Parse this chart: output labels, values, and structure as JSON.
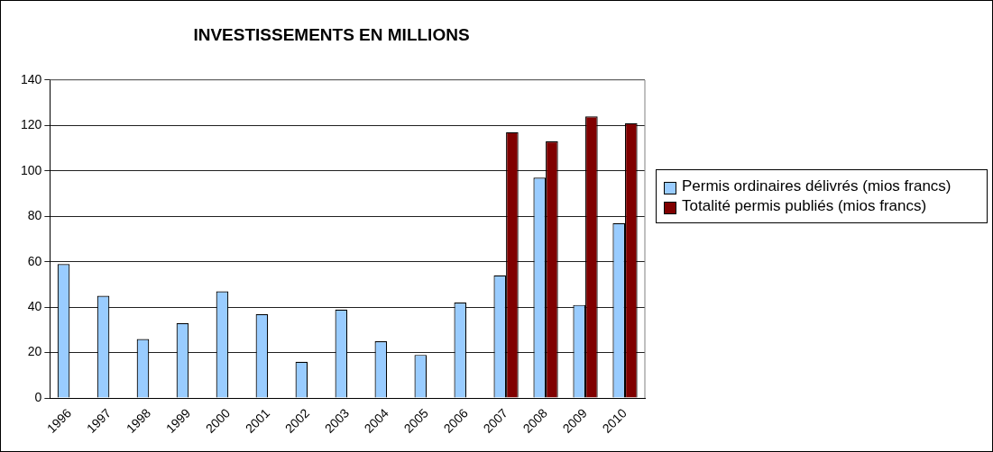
{
  "chart_data": {
    "type": "bar",
    "title": "INVESTISSEMENTS EN MILLIONS",
    "categories": [
      "1996",
      "1997",
      "1998",
      "1999",
      "2000",
      "2001",
      "2002",
      "2003",
      "2004",
      "2005",
      "2006",
      "2007",
      "2008",
      "2009",
      "2010"
    ],
    "series": [
      {
        "name": "Permis ordinaires délivrés (mios francs)",
        "color": "#99ccff",
        "values": [
          59,
          45,
          26,
          33,
          47,
          37,
          16,
          39,
          25,
          19,
          42,
          54,
          97,
          41,
          77
        ]
      },
      {
        "name": "Totalité permis publiés (mios francs)",
        "color": "#800000",
        "values": [
          null,
          null,
          null,
          null,
          null,
          null,
          null,
          null,
          null,
          null,
          null,
          117,
          113,
          124,
          121
        ]
      }
    ],
    "ylim": [
      0,
      140
    ],
    "yticks": [
      0,
      20,
      40,
      60,
      80,
      100,
      120,
      140
    ],
    "grid": "y",
    "legend": "right"
  }
}
